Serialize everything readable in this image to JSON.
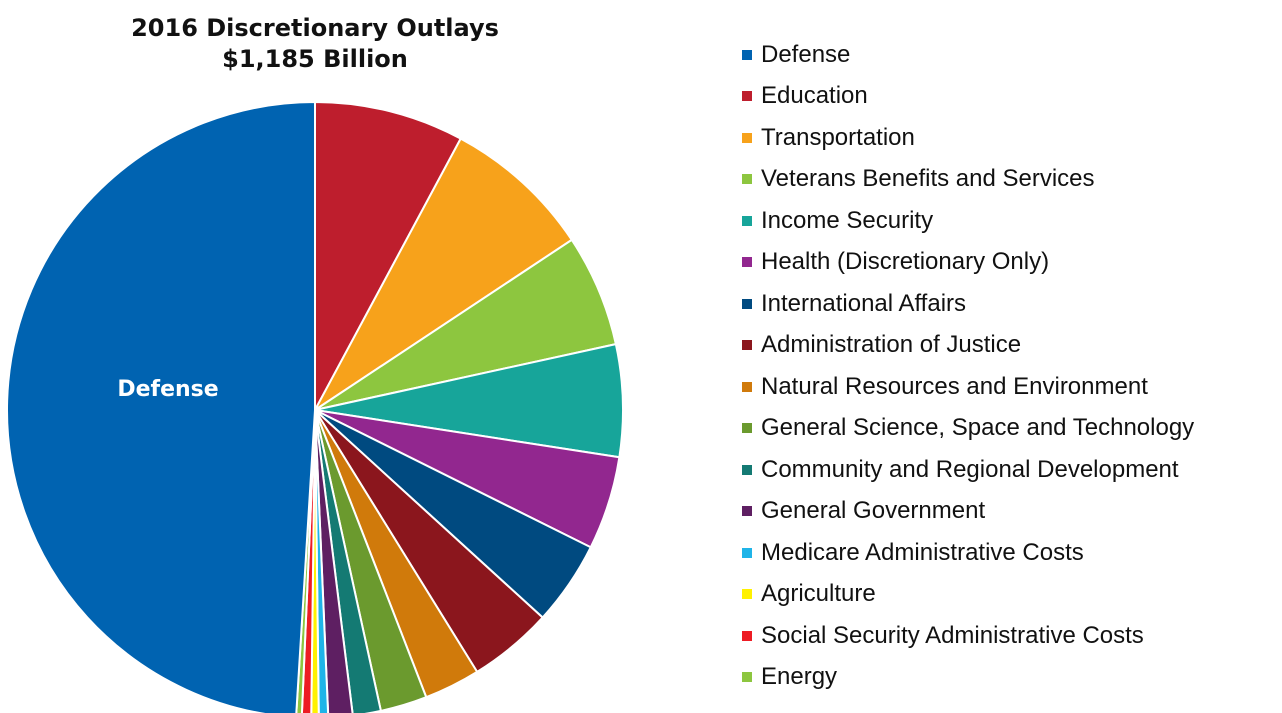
{
  "chart_data": {
    "type": "pie",
    "title": "2016 Discretionary Outlays",
    "subtitle": "$1,185 Billion",
    "slice_label": "Defense",
    "legend_position": "right",
    "slices": [
      {
        "name": "Defense",
        "value": 50.0,
        "color": "#0063B1"
      },
      {
        "name": "Education",
        "value": 8.0,
        "color": "#BE1E2D"
      },
      {
        "name": "Transportation",
        "value": 8.0,
        "color": "#F7A21B"
      },
      {
        "name": "Veterans Benefits and Services",
        "value": 6.0,
        "color": "#8DC63F"
      },
      {
        "name": "Income Security",
        "value": 6.0,
        "color": "#17A59A"
      },
      {
        "name": "Health (Discretionary Only)",
        "value": 5.0,
        "color": "#92278F"
      },
      {
        "name": "International Affairs",
        "value": 4.5,
        "color": "#004A80"
      },
      {
        "name": "Administration of Justice",
        "value": 4.5,
        "color": "#8B161D"
      },
      {
        "name": "Natural Resources and Environment",
        "value": 3.0,
        "color": "#D07A0B"
      },
      {
        "name": "General Science, Space and Technology",
        "value": 2.5,
        "color": "#6B9A2E"
      },
      {
        "name": "Community and Regional Development",
        "value": 1.5,
        "color": "#147A73"
      },
      {
        "name": "General Government",
        "value": 1.3,
        "color": "#5E1F62"
      },
      {
        "name": "Medicare Administrative Costs",
        "value": 0.5,
        "color": "#1FB4E8"
      },
      {
        "name": "Agriculture",
        "value": 0.4,
        "color": "#FFF100"
      },
      {
        "name": "Social Security Administrative Costs",
        "value": 0.5,
        "color": "#ED1C24"
      },
      {
        "name": "Energy",
        "value": 0.3,
        "color": "#8DC63F"
      }
    ]
  }
}
